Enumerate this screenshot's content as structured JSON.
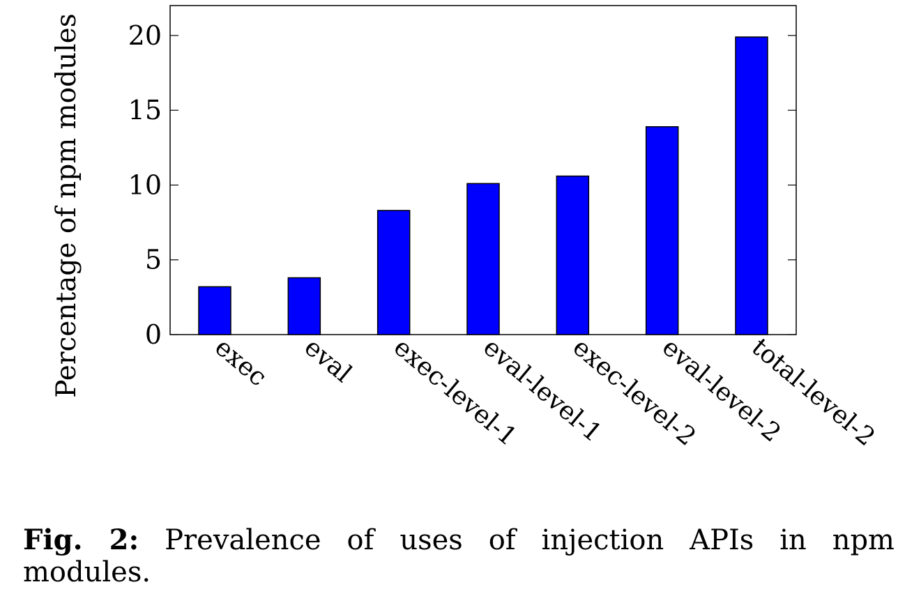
{
  "chart_data": {
    "type": "bar",
    "categories": [
      "exec",
      "eval",
      "exec-level-1",
      "eval-level-1",
      "exec-level-2",
      "eval-level-2",
      "total-level-2"
    ],
    "values": [
      3.2,
      3.8,
      8.3,
      10.1,
      10.6,
      13.9,
      19.9
    ],
    "ylabel": "Percentage of npm modules",
    "xlabel": "",
    "ylim": [
      0,
      22
    ],
    "yticks": [
      0,
      5,
      10,
      15,
      20
    ],
    "bar_color": "#0000ff",
    "grid": false
  },
  "caption": {
    "label": "Fig. 2:",
    "text": "Prevalence of uses of injection APIs in npm modules."
  }
}
